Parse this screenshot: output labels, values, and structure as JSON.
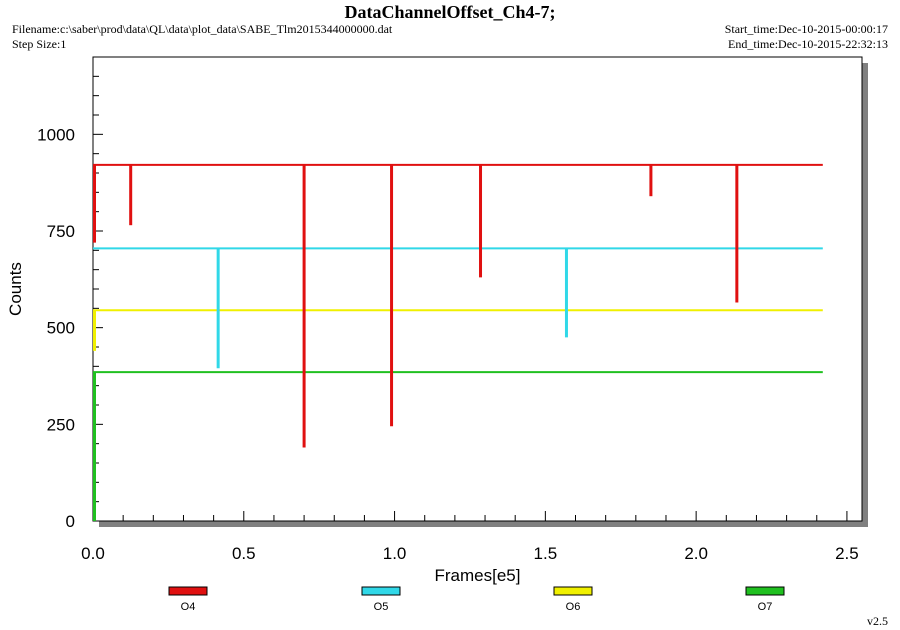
{
  "header": {
    "title": "DataChannelOffset_Ch4-7;",
    "filename": "Filename:c:\\saber\\prod\\data\\QL\\data\\plot_data\\SABE_Tlm2015344000000.dat",
    "step_size": "Step Size:1",
    "start_time": "Start_time:Dec-10-2015-00:00:17",
    "end_time": "End_time:Dec-10-2015-22:32:13"
  },
  "footer": {
    "version": "v2.5"
  },
  "chart_data": {
    "type": "line",
    "title": "DataChannelOffset_Ch4-7;",
    "xlabel": "Frames[e5]",
    "ylabel": "Counts",
    "xlim": [
      0,
      2.55
    ],
    "ylim": [
      0,
      1200
    ],
    "xticks": [
      0,
      0.5,
      1,
      1.5,
      2,
      2.5
    ],
    "xtick_labels": [
      "0.0",
      "0.5",
      "1.0",
      "1.5",
      "2.0",
      "2.5"
    ],
    "yticks": [
      0,
      250,
      500,
      750,
      1000
    ],
    "ytick_labels": [
      "0",
      "250",
      "500",
      "750",
      "1000"
    ],
    "grid": false,
    "legend_position": "bottom",
    "x_end": 2.42,
    "series": [
      {
        "name": "O4",
        "color": "#e01010",
        "baseline": 921,
        "dips": [
          [
            0.0,
            720
          ],
          [
            0.125,
            765
          ],
          [
            0.7,
            190
          ],
          [
            0.99,
            245
          ],
          [
            1.285,
            630
          ],
          [
            1.85,
            840
          ],
          [
            2.135,
            565
          ]
        ]
      },
      {
        "name": "O5",
        "color": "#30d8e8",
        "baseline": 705,
        "dips": [
          [
            0.415,
            395
          ],
          [
            1.57,
            475
          ]
        ]
      },
      {
        "name": "O6",
        "color": "#f0f000",
        "baseline": 545,
        "dips": [
          [
            0.0,
            440
          ]
        ]
      },
      {
        "name": "O7",
        "color": "#20c020",
        "baseline": 385,
        "dips": [
          [
            0.0,
            0
          ]
        ]
      }
    ]
  }
}
